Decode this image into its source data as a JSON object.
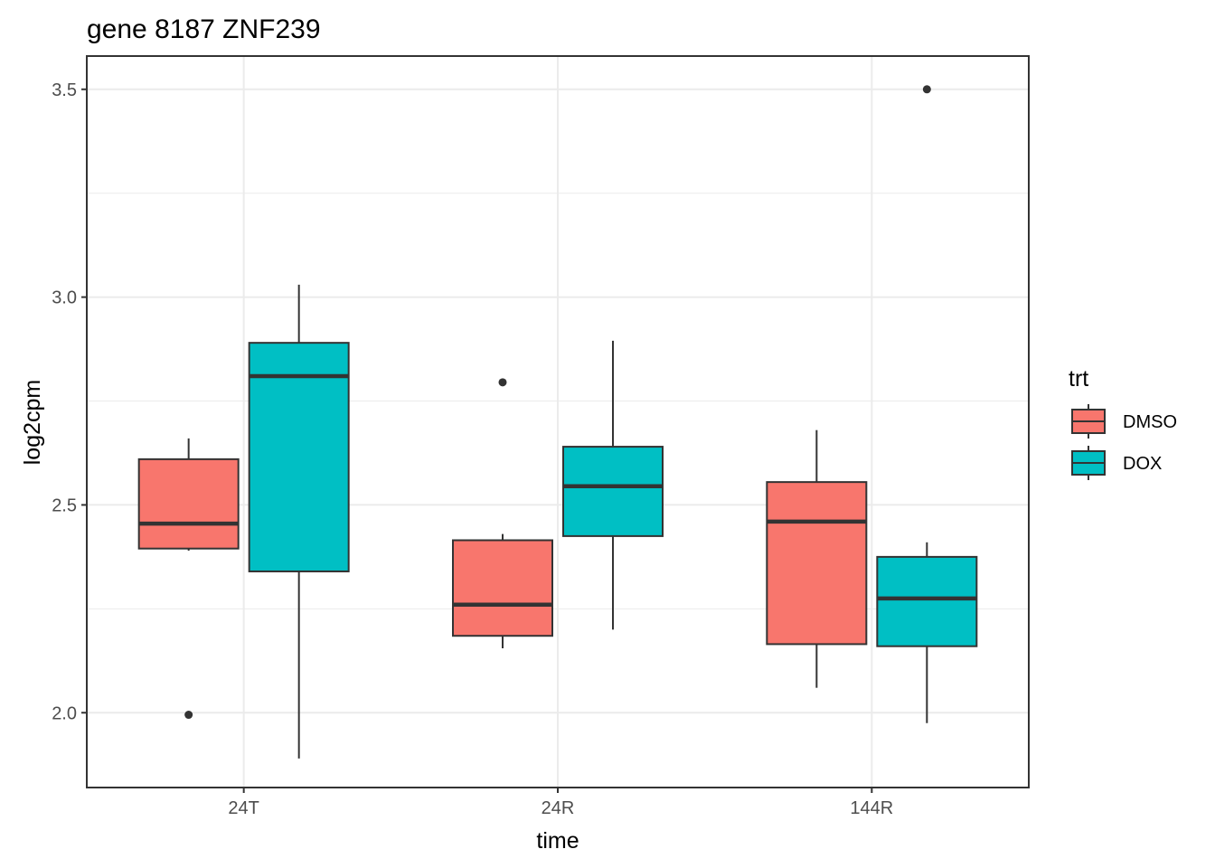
{
  "chart_data": {
    "type": "boxplot",
    "title": "gene 8187 ZNF239",
    "xlabel": "time",
    "ylabel": "log2cpm",
    "categories": [
      "24T",
      "24R",
      "144R"
    ],
    "ylim": [
      1.82,
      3.58
    ],
    "yticks": [
      2.0,
      2.5,
      3.0,
      3.5
    ],
    "ytick_labels": [
      "2.0",
      "2.5",
      "3.0",
      "3.5"
    ],
    "grid": true,
    "legend": {
      "title": "trt",
      "position": "right"
    },
    "series": [
      {
        "name": "DMSO",
        "color": "#F8766D",
        "boxes": [
          {
            "category": "24T",
            "low": 2.39,
            "q1": 2.395,
            "median": 2.455,
            "q3": 2.61,
            "high": 2.66,
            "outliers": [
              1.995
            ]
          },
          {
            "category": "24R",
            "low": 2.155,
            "q1": 2.185,
            "median": 2.26,
            "q3": 2.415,
            "high": 2.43,
            "outliers": [
              2.795
            ]
          },
          {
            "category": "144R",
            "low": 2.06,
            "q1": 2.165,
            "median": 2.46,
            "q3": 2.555,
            "high": 2.68,
            "outliers": []
          }
        ]
      },
      {
        "name": "DOX",
        "color": "#00BFC4",
        "boxes": [
          {
            "category": "24T",
            "low": 1.89,
            "q1": 2.34,
            "median": 2.81,
            "q3": 2.89,
            "high": 3.03,
            "outliers": []
          },
          {
            "category": "24R",
            "low": 2.2,
            "q1": 2.425,
            "median": 2.545,
            "q3": 2.64,
            "high": 2.895,
            "outliers": []
          },
          {
            "category": "144R",
            "low": 1.975,
            "q1": 2.16,
            "median": 2.275,
            "q3": 2.375,
            "high": 2.41,
            "outliers": [
              3.5
            ]
          }
        ]
      }
    ]
  }
}
